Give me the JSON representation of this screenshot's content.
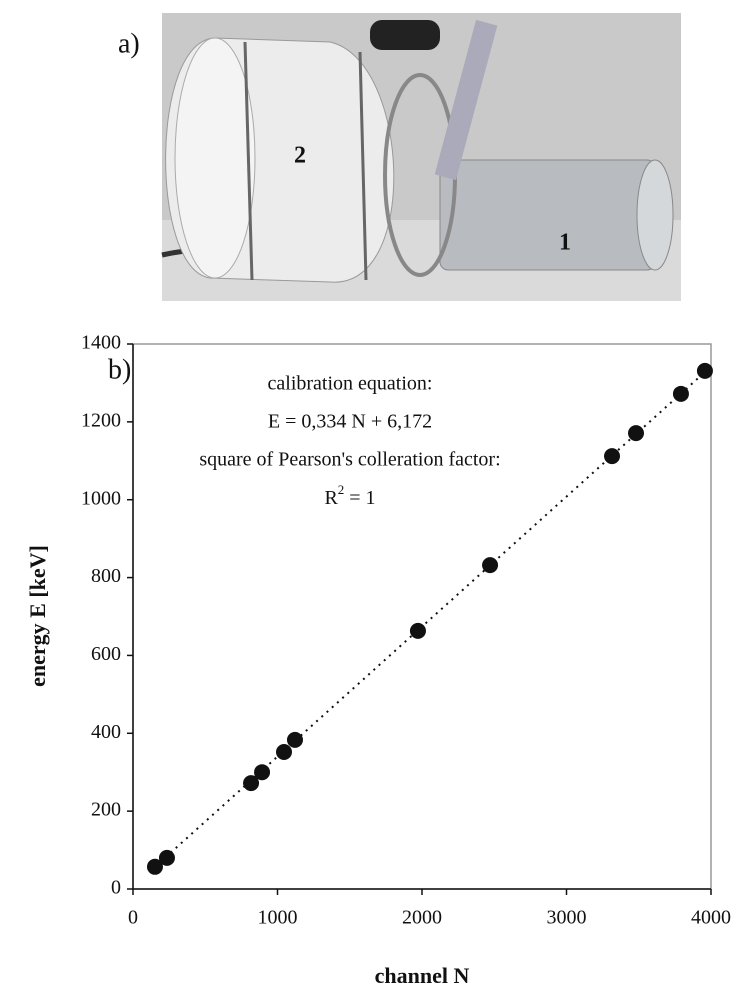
{
  "panel_labels": {
    "a": "a)",
    "b": "b)"
  },
  "photo": {
    "labels": [
      "2",
      "1"
    ]
  },
  "chart_data": {
    "type": "scatter",
    "x_label": "channel N",
    "y_label": "energy E [keV]",
    "annotations": [
      "calibration equation:",
      "E = 0,334 N + 6,172",
      "square of Pearson's colleration factor:"
    ],
    "r_squared": {
      "symbol": "R",
      "exponent": "2",
      "text": "= 1"
    },
    "x": [
      152,
      235,
      817,
      893,
      1045,
      1121,
      1972,
      2471,
      3315,
      3481,
      3792,
      3958
    ],
    "values": [
      57,
      80,
      272,
      300,
      352,
      383,
      663,
      832,
      1112,
      1171,
      1272,
      1331
    ],
    "color": "#111111",
    "trend_line": {
      "x": [
        152,
        3958
      ],
      "values": [
        57,
        1328
      ]
    },
    "xlim": [
      0,
      4000
    ],
    "xticks": [
      0,
      1000,
      2000,
      3000,
      4000
    ],
    "ylim": [
      0,
      1400
    ],
    "yticks": [
      0,
      200,
      400,
      600,
      800,
      1000,
      1200,
      1400
    ]
  }
}
